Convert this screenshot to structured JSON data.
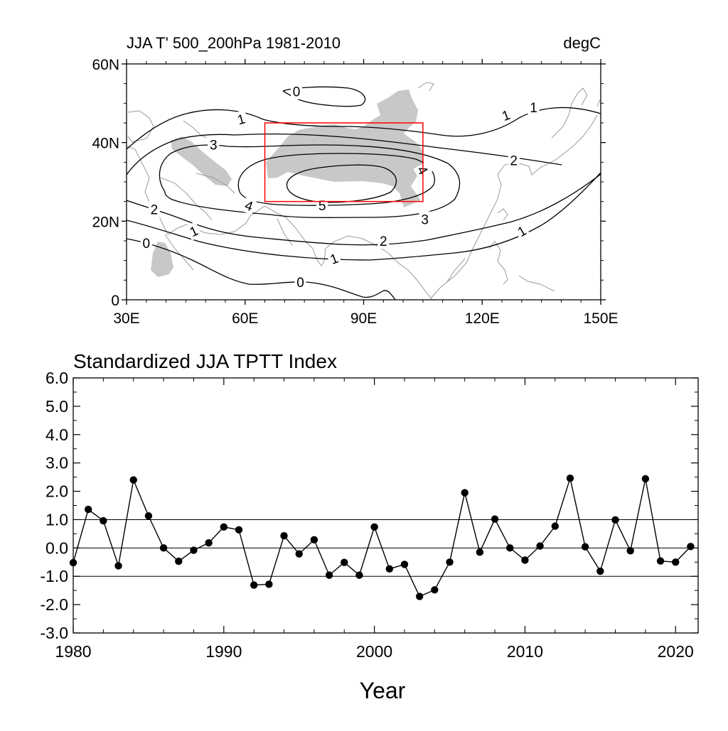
{
  "map": {
    "title": "JJA T' 500_200hPa 1981-2010",
    "units": "degC",
    "lat_ticks": [
      "60N",
      "40N",
      "20N",
      "0"
    ],
    "lon_ticks": [
      "30E",
      "60E",
      "90E",
      "120E",
      "150E"
    ],
    "contour_labels": [
      {
        "text": "0",
        "lon": 73,
        "lat": 53,
        "rot": 0
      },
      {
        "text": "1",
        "lon": 59,
        "lat": 46,
        "rot": -15
      },
      {
        "text": "1",
        "lon": 126,
        "lat": 47,
        "rot": -20
      },
      {
        "text": "1",
        "lon": 133,
        "lat": 49,
        "rot": 0
      },
      {
        "text": "3",
        "lon": 52,
        "lat": 39.5,
        "rot": 0
      },
      {
        "text": "2",
        "lon": 128,
        "lat": 35.5,
        "rot": 0
      },
      {
        "text": "4",
        "lon": 105,
        "lat": 33,
        "rot": 60
      },
      {
        "text": "4",
        "lon": 61,
        "lat": 24,
        "rot": 20
      },
      {
        "text": "5",
        "lon": 79.5,
        "lat": 24,
        "rot": 0
      },
      {
        "text": "2",
        "lon": 37,
        "lat": 23,
        "rot": 0
      },
      {
        "text": "3",
        "lon": 105.5,
        "lat": 20.5,
        "rot": 0
      },
      {
        "text": "1",
        "lon": 47,
        "lat": 17.5,
        "rot": -25
      },
      {
        "text": "2",
        "lon": 95,
        "lat": 15,
        "rot": 0
      },
      {
        "text": "0",
        "lon": 35,
        "lat": 14.5,
        "rot": 0
      },
      {
        "text": "1",
        "lon": 82.5,
        "lat": 10.5,
        "rot": -20
      },
      {
        "text": "1",
        "lon": 130,
        "lat": 17.5,
        "rot": -30
      },
      {
        "text": "0",
        "lon": 74,
        "lat": 4.5,
        "rot": 0
      }
    ],
    "box": {
      "lon": [
        65,
        105
      ],
      "lat": [
        25,
        45
      ],
      "color": "#ff0000"
    },
    "shade_color": "#c8c8c8",
    "coast_color": "#9a9a9a"
  },
  "timeseries": {
    "title": "Standardized JJA TPTT Index",
    "xlabel": "Year"
  },
  "chart_data": {
    "type": "line",
    "title": "Standardized JJA TPTT Index",
    "xlabel": "Year",
    "ylabel": "",
    "x": [
      1980,
      1981,
      1982,
      1983,
      1984,
      1985,
      1986,
      1987,
      1988,
      1989,
      1990,
      1991,
      1992,
      1993,
      1994,
      1995,
      1996,
      1997,
      1998,
      1999,
      2000,
      2001,
      2002,
      2003,
      2004,
      2005,
      2006,
      2007,
      2008,
      2009,
      2010,
      2011,
      2012,
      2013,
      2014,
      2015,
      2016,
      2017,
      2018,
      2019,
      2020,
      2021
    ],
    "values": [
      -0.52,
      1.36,
      0.96,
      -0.63,
      2.4,
      1.13,
      0.0,
      -0.47,
      -0.08,
      0.18,
      0.74,
      0.64,
      -1.31,
      -1.28,
      0.43,
      -0.21,
      0.29,
      -0.96,
      -0.51,
      -0.96,
      0.74,
      -0.74,
      -0.58,
      -1.71,
      -1.48,
      -0.5,
      1.95,
      -0.15,
      1.02,
      0.0,
      -0.43,
      0.07,
      0.77,
      2.46,
      0.04,
      -0.82,
      0.99,
      -0.1,
      2.44,
      -0.46,
      -0.5,
      0.05
    ],
    "xlim": [
      1980,
      2021.5
    ],
    "ylim": [
      -3.0,
      6.0
    ],
    "xticks": [
      "1980",
      "1990",
      "2000",
      "2010",
      "2020"
    ],
    "yticks": [
      "6.0",
      "5.0",
      "4.0",
      "3.0",
      "2.0",
      "1.0",
      "0.0",
      "-1.0",
      "-2.0",
      "-3.0"
    ],
    "reference_lines": [
      1.0,
      0.0,
      -1.0
    ],
    "marker": "filled-circle",
    "grid": false,
    "legend": "none"
  }
}
